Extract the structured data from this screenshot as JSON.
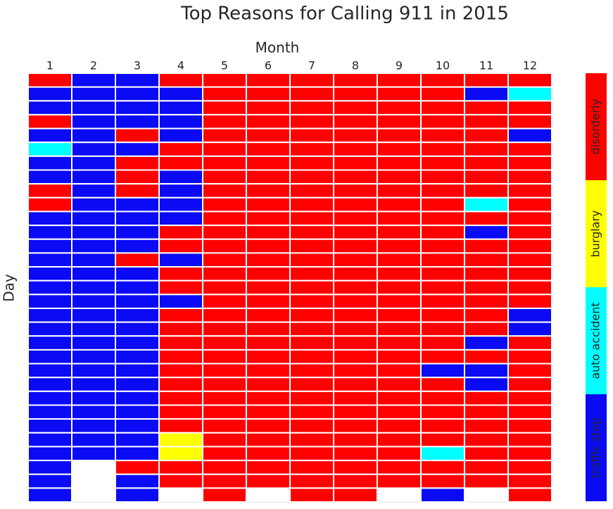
{
  "chart_data": {
    "type": "heatmap",
    "title": "Top Reasons for Calling 911 in 2015",
    "x_label": "Month",
    "y_label": "Day",
    "x": [
      1,
      2,
      3,
      4,
      5,
      6,
      7,
      8,
      9,
      10,
      11,
      12
    ],
    "legend_categories": [
      "traffic stop",
      "auto accident",
      "burglary",
      "disorderly"
    ],
    "legend_colors": [
      "#0a0af5",
      "#00ffff",
      "#ffff00",
      "#ff0000"
    ],
    "values": [
      [
        3,
        0,
        0,
        3,
        3,
        3,
        3,
        3,
        3,
        3,
        3,
        3
      ],
      [
        0,
        0,
        0,
        0,
        3,
        3,
        3,
        3,
        3,
        3,
        0,
        1
      ],
      [
        0,
        0,
        0,
        0,
        3,
        3,
        3,
        3,
        3,
        3,
        3,
        3
      ],
      [
        3,
        0,
        0,
        0,
        3,
        3,
        3,
        3,
        3,
        3,
        3,
        3
      ],
      [
        0,
        0,
        3,
        0,
        3,
        3,
        3,
        3,
        3,
        3,
        3,
        0
      ],
      [
        1,
        0,
        0,
        3,
        3,
        3,
        3,
        3,
        3,
        3,
        3,
        3
      ],
      [
        0,
        0,
        3,
        3,
        3,
        3,
        3,
        3,
        3,
        3,
        3,
        3
      ],
      [
        0,
        0,
        3,
        0,
        3,
        3,
        3,
        3,
        3,
        3,
        3,
        3
      ],
      [
        3,
        0,
        3,
        0,
        3,
        3,
        3,
        3,
        3,
        3,
        3,
        3
      ],
      [
        3,
        0,
        0,
        0,
        3,
        3,
        3,
        3,
        3,
        3,
        1,
        3
      ],
      [
        0,
        0,
        0,
        0,
        3,
        3,
        3,
        3,
        3,
        3,
        3,
        3
      ],
      [
        0,
        0,
        0,
        3,
        3,
        3,
        3,
        3,
        3,
        3,
        0,
        3
      ],
      [
        0,
        0,
        0,
        3,
        3,
        3,
        3,
        3,
        3,
        3,
        3,
        3
      ],
      [
        0,
        0,
        3,
        0,
        3,
        3,
        3,
        3,
        3,
        3,
        3,
        3
      ],
      [
        0,
        0,
        0,
        3,
        3,
        3,
        3,
        3,
        3,
        3,
        3,
        3
      ],
      [
        0,
        0,
        0,
        3,
        3,
        3,
        3,
        3,
        3,
        3,
        3,
        3
      ],
      [
        0,
        0,
        0,
        0,
        3,
        3,
        3,
        3,
        3,
        3,
        3,
        3
      ],
      [
        0,
        0,
        0,
        3,
        3,
        3,
        3,
        3,
        3,
        3,
        3,
        0
      ],
      [
        0,
        0,
        0,
        3,
        3,
        3,
        3,
        3,
        3,
        3,
        3,
        0
      ],
      [
        0,
        0,
        0,
        3,
        3,
        3,
        3,
        3,
        3,
        3,
        0,
        3
      ],
      [
        0,
        0,
        0,
        3,
        3,
        3,
        3,
        3,
        3,
        3,
        3,
        3
      ],
      [
        0,
        0,
        0,
        3,
        3,
        3,
        3,
        3,
        3,
        0,
        0,
        3
      ],
      [
        0,
        0,
        0,
        3,
        3,
        3,
        3,
        3,
        3,
        3,
        0,
        3
      ],
      [
        0,
        0,
        0,
        3,
        3,
        3,
        3,
        3,
        3,
        3,
        3,
        3
      ],
      [
        0,
        0,
        0,
        3,
        3,
        3,
        3,
        3,
        3,
        3,
        3,
        3
      ],
      [
        0,
        0,
        0,
        3,
        3,
        3,
        3,
        3,
        3,
        3,
        3,
        3
      ],
      [
        0,
        0,
        0,
        2,
        3,
        3,
        3,
        3,
        3,
        3,
        3,
        3
      ],
      [
        0,
        0,
        0,
        2,
        3,
        3,
        3,
        3,
        3,
        1,
        3,
        3
      ],
      [
        0,
        null,
        3,
        3,
        3,
        3,
        3,
        3,
        3,
        3,
        3,
        3
      ],
      [
        0,
        null,
        0,
        3,
        3,
        3,
        3,
        3,
        3,
        3,
        3,
        3
      ],
      [
        0,
        null,
        0,
        null,
        3,
        null,
        3,
        3,
        null,
        0,
        null,
        3
      ]
    ]
  }
}
